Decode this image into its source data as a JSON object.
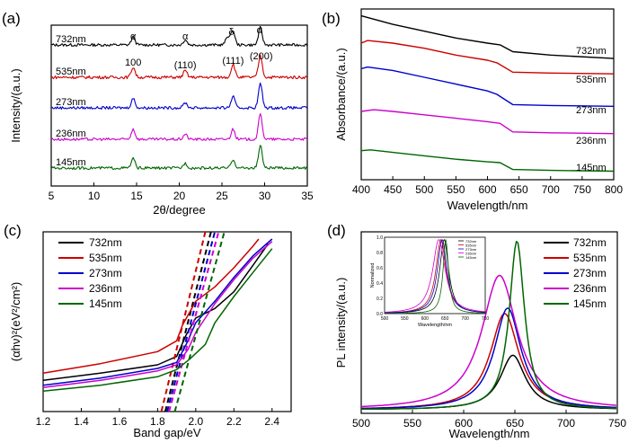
{
  "colors": {
    "732nm": "#000000",
    "535nm": "#cc0000",
    "273nm": "#0000cc",
    "236nm": "#cc00cc",
    "145nm": "#006600"
  },
  "chart_data": [
    {
      "panel": "(a)",
      "type": "line",
      "xlabel": "2θ/degree",
      "ylabel": "Intensity/(a.u.)",
      "xlim": [
        5,
        35
      ],
      "xticks": [
        "5",
        "10",
        "15",
        "20",
        "25",
        "30",
        "35"
      ],
      "peaks_2theta": [
        14.6,
        20.7,
        26.3,
        29.5
      ],
      "series": [
        {
          "name": "732nm",
          "peak_heights": [
            0.45,
            0.3,
            0.8,
            1.0
          ],
          "extra_peaks": [
            [
              25.7,
              0.5
            ]
          ]
        },
        {
          "name": "535nm",
          "peak_heights": [
            0.55,
            0.35,
            0.7,
            1.15
          ]
        },
        {
          "name": "273nm",
          "peak_heights": [
            0.55,
            0.3,
            0.65,
            1.4
          ]
        },
        {
          "name": "236nm",
          "peak_heights": [
            0.6,
            0.3,
            0.6,
            1.45
          ]
        },
        {
          "name": "145nm",
          "peak_heights": [
            0.55,
            0.28,
            0.5,
            1.3
          ]
        }
      ],
      "annotations": [
        "α",
        "α",
        "δ",
        "α",
        "100",
        "(110)",
        "(111)",
        "(200)"
      ]
    },
    {
      "panel": "(b)",
      "type": "line",
      "xlabel": "Wavelength/nm",
      "ylabel": "Absorbance/(a.u.)",
      "xlim": [
        400,
        800
      ],
      "xticks": [
        "400",
        "450",
        "500",
        "550",
        "600",
        "650",
        "700",
        "750",
        "800"
      ],
      "series": [
        {
          "name": "732nm",
          "x": [
            400,
            450,
            500,
            550,
            600,
            620,
            640,
            700,
            800
          ],
          "y": [
            9.6,
            9.1,
            8.7,
            8.3,
            8.0,
            7.9,
            7.5,
            7.3,
            7.1
          ]
        },
        {
          "name": "535nm",
          "x": [
            400,
            410,
            450,
            500,
            550,
            600,
            615,
            640,
            700,
            800
          ],
          "y": [
            8.0,
            8.15,
            8.0,
            7.7,
            7.3,
            7.0,
            6.85,
            6.3,
            6.25,
            6.2
          ]
        },
        {
          "name": "273nm",
          "x": [
            400,
            410,
            450,
            500,
            550,
            600,
            615,
            640,
            700,
            800
          ],
          "y": [
            6.5,
            6.6,
            6.4,
            6.0,
            5.6,
            5.2,
            5.0,
            4.4,
            4.35,
            4.3
          ]
        },
        {
          "name": "236nm",
          "x": [
            400,
            420,
            450,
            500,
            550,
            600,
            620,
            640,
            700,
            800
          ],
          "y": [
            4.0,
            4.1,
            4.0,
            3.8,
            3.6,
            3.4,
            3.3,
            2.8,
            2.75,
            2.7
          ]
        },
        {
          "name": "145nm",
          "x": [
            400,
            415,
            450,
            500,
            550,
            600,
            620,
            640,
            700,
            800
          ],
          "y": [
            1.7,
            1.75,
            1.6,
            1.4,
            1.2,
            1.05,
            1.0,
            0.6,
            0.55,
            0.5
          ]
        }
      ]
    },
    {
      "panel": "(c)",
      "type": "line",
      "xlabel": "Band gap/eV",
      "ylabel": "(αhν)²(eV²/cm²)",
      "xlim": [
        1.2,
        2.5
      ],
      "xticks": [
        "1.2",
        "1.4",
        "1.6",
        "1.8",
        "2.0",
        "2.2",
        "2.4"
      ],
      "legend": "top-left",
      "series": [
        {
          "name": "732nm",
          "x": [
            1.2,
            1.5,
            1.8,
            1.9,
            1.95,
            2.0,
            2.1,
            2.2,
            2.3,
            2.38
          ],
          "y": [
            1.3,
            1.6,
            1.95,
            2.3,
            3.2,
            3.9,
            4.3,
            5.0,
            6.1,
            7.0
          ],
          "tangent": [
            1.84,
            2.08
          ]
        },
        {
          "name": "535nm",
          "x": [
            1.2,
            1.5,
            1.8,
            1.9,
            1.93,
            2.0,
            2.1,
            2.2,
            2.3,
            2.33
          ],
          "y": [
            1.6,
            2.0,
            2.5,
            2.95,
            3.6,
            4.6,
            5.2,
            6.0,
            6.9,
            7.2
          ],
          "tangent": [
            1.82,
            2.05
          ]
        },
        {
          "name": "273nm",
          "x": [
            1.2,
            1.5,
            1.8,
            1.9,
            1.95,
            2.0,
            2.1,
            2.2,
            2.3,
            2.4
          ],
          "y": [
            1.1,
            1.4,
            1.8,
            2.05,
            2.8,
            3.7,
            4.6,
            5.6,
            6.5,
            7.2
          ],
          "tangent": [
            1.85,
            2.1
          ]
        },
        {
          "name": "236nm",
          "x": [
            1.2,
            1.5,
            1.8,
            1.9,
            1.96,
            2.0,
            2.1,
            2.2,
            2.3,
            2.4
          ],
          "y": [
            1.0,
            1.3,
            1.7,
            1.95,
            2.6,
            3.3,
            4.5,
            5.5,
            6.4,
            7.1
          ],
          "tangent": [
            1.86,
            2.12
          ]
        },
        {
          "name": "145nm",
          "x": [
            1.2,
            1.5,
            1.8,
            1.9,
            1.97,
            2.05,
            2.1,
            2.2,
            2.3,
            2.4
          ],
          "y": [
            0.85,
            1.1,
            1.45,
            1.75,
            2.2,
            2.8,
            3.7,
            4.8,
            5.8,
            6.8
          ],
          "tangent": [
            1.89,
            2.15
          ]
        }
      ]
    },
    {
      "panel": "(d)",
      "type": "line",
      "xlabel": "Wavelength/nm",
      "ylabel": "PL intensity/(a.u.)",
      "xlim": [
        500,
        750
      ],
      "xticks": [
        "500",
        "550",
        "600",
        "650",
        "700",
        "750"
      ],
      "legend": "top-right",
      "series": [
        {
          "name": "732nm",
          "center": 648,
          "height": 0.3,
          "width": 15
        },
        {
          "name": "535nm",
          "center": 640,
          "height": 0.53,
          "width": 17
        },
        {
          "name": "273nm",
          "center": 643,
          "height": 0.56,
          "width": 16
        },
        {
          "name": "236nm",
          "center": 635,
          "height": 0.74,
          "width": 21
        },
        {
          "name": "145nm",
          "center": 652,
          "height": 0.93,
          "width": 9
        }
      ],
      "inset": {
        "xlabel": "Wavelength/nm",
        "ylabel": "Normalized",
        "xlim": [
          500,
          750
        ],
        "xticks": [
          "500",
          "550",
          "600",
          "650",
          "700",
          "750"
        ],
        "yticks": [
          "0.0",
          "0.2",
          "0.4",
          "0.6",
          "0.8",
          "1.0"
        ]
      }
    }
  ]
}
